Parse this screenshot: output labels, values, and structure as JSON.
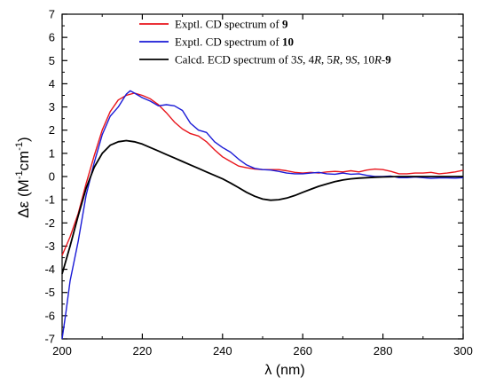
{
  "chart_data": {
    "type": "line",
    "xlabel": "λ (nm)",
    "ylabel_main": "Δε (M",
    "ylabel_exp1": "-1",
    "ylabel_mid": "cm",
    "ylabel_exp2": "-1",
    "ylabel_end": ")",
    "xlim": [
      200,
      300
    ],
    "ylim": [
      -7,
      7
    ],
    "x_ticks": [
      "200",
      "220",
      "240",
      "260",
      "280",
      "300"
    ],
    "y_ticks": [
      "-7",
      "-6",
      "-5",
      "-4",
      "-3",
      "-2",
      "-1",
      "0",
      "1",
      "2",
      "3",
      "4",
      "5",
      "6",
      "7"
    ],
    "grid": false,
    "legend_position": "top-right",
    "legend": [
      {
        "parts": [
          [
            "Exptl. CD spectrum of ",
            "normal"
          ],
          [
            "9",
            "bold"
          ]
        ],
        "color": "#e8141b"
      },
      {
        "parts": [
          [
            "Exptl. CD spectrum of ",
            "normal"
          ],
          [
            "10",
            "bold"
          ]
        ],
        "color": "#1a1ad6"
      },
      {
        "parts": [
          [
            "Calcd. ECD spectrum of 3",
            "normal"
          ],
          [
            "S",
            "italic"
          ],
          [
            ", 4",
            "normal"
          ],
          [
            "R",
            "italic"
          ],
          [
            ", 5",
            "normal"
          ],
          [
            "R",
            "italic"
          ],
          [
            ", 9",
            "normal"
          ],
          [
            "S",
            "italic"
          ],
          [
            ", 10",
            "normal"
          ],
          [
            "R",
            "italic"
          ],
          [
            "-",
            "normal"
          ],
          [
            "9",
            "bold"
          ]
        ],
        "color": "#000000"
      }
    ],
    "series": [
      {
        "color": "#e8141b",
        "points": [
          [
            200,
            -3.4
          ],
          [
            202,
            -2.6
          ],
          [
            204,
            -1.6
          ],
          [
            206,
            -0.3
          ],
          [
            208,
            0.9
          ],
          [
            210,
            2.0
          ],
          [
            212,
            2.8
          ],
          [
            214,
            3.3
          ],
          [
            216,
            3.5
          ],
          [
            218,
            3.6
          ],
          [
            220,
            3.5
          ],
          [
            222,
            3.35
          ],
          [
            224,
            3.1
          ],
          [
            226,
            2.75
          ],
          [
            228,
            2.35
          ],
          [
            230,
            2.05
          ],
          [
            232,
            1.85
          ],
          [
            234,
            1.75
          ],
          [
            236,
            1.5
          ],
          [
            238,
            1.15
          ],
          [
            240,
            0.85
          ],
          [
            242,
            0.65
          ],
          [
            244,
            0.45
          ],
          [
            246,
            0.38
          ],
          [
            248,
            0.32
          ],
          [
            250,
            0.3
          ],
          [
            252,
            0.3
          ],
          [
            254,
            0.3
          ],
          [
            256,
            0.25
          ],
          [
            258,
            0.18
          ],
          [
            260,
            0.15
          ],
          [
            262,
            0.18
          ],
          [
            264,
            0.15
          ],
          [
            266,
            0.2
          ],
          [
            268,
            0.22
          ],
          [
            270,
            0.2
          ],
          [
            272,
            0.25
          ],
          [
            274,
            0.2
          ],
          [
            276,
            0.28
          ],
          [
            278,
            0.32
          ],
          [
            280,
            0.3
          ],
          [
            282,
            0.22
          ],
          [
            284,
            0.12
          ],
          [
            286,
            0.12
          ],
          [
            288,
            0.15
          ],
          [
            290,
            0.15
          ],
          [
            292,
            0.18
          ],
          [
            294,
            0.12
          ],
          [
            296,
            0.15
          ],
          [
            298,
            0.2
          ],
          [
            300,
            0.27
          ]
        ]
      },
      {
        "color": "#1a1ad6",
        "points": [
          [
            200,
            -7.0
          ],
          [
            201,
            -5.8
          ],
          [
            202,
            -4.5
          ],
          [
            204,
            -2.8
          ],
          [
            206,
            -0.8
          ],
          [
            208,
            0.6
          ],
          [
            210,
            1.8
          ],
          [
            212,
            2.6
          ],
          [
            214,
            3.0
          ],
          [
            216,
            3.55
          ],
          [
            217,
            3.7
          ],
          [
            218,
            3.6
          ],
          [
            220,
            3.4
          ],
          [
            222,
            3.25
          ],
          [
            224,
            3.05
          ],
          [
            226,
            3.1
          ],
          [
            228,
            3.05
          ],
          [
            230,
            2.85
          ],
          [
            232,
            2.3
          ],
          [
            234,
            2.0
          ],
          [
            236,
            1.9
          ],
          [
            238,
            1.5
          ],
          [
            240,
            1.25
          ],
          [
            242,
            1.05
          ],
          [
            244,
            0.75
          ],
          [
            246,
            0.5
          ],
          [
            248,
            0.35
          ],
          [
            250,
            0.3
          ],
          [
            252,
            0.28
          ],
          [
            254,
            0.22
          ],
          [
            256,
            0.15
          ],
          [
            258,
            0.12
          ],
          [
            260,
            0.12
          ],
          [
            262,
            0.15
          ],
          [
            264,
            0.18
          ],
          [
            266,
            0.12
          ],
          [
            268,
            0.1
          ],
          [
            270,
            0.15
          ],
          [
            272,
            0.1
          ],
          [
            274,
            0.12
          ],
          [
            276,
            0.05
          ],
          [
            278,
            0.0
          ],
          [
            280,
            0.0
          ],
          [
            282,
            0.02
          ],
          [
            284,
            -0.05
          ],
          [
            286,
            -0.05
          ],
          [
            288,
            -0.02
          ],
          [
            290,
            -0.05
          ],
          [
            292,
            -0.08
          ],
          [
            294,
            -0.06
          ],
          [
            296,
            -0.06
          ],
          [
            298,
            -0.07
          ],
          [
            300,
            -0.05
          ]
        ]
      },
      {
        "color": "#000000",
        "points": [
          [
            200,
            -4.2
          ],
          [
            202,
            -3.0
          ],
          [
            204,
            -1.7
          ],
          [
            206,
            -0.5
          ],
          [
            208,
            0.4
          ],
          [
            210,
            1.0
          ],
          [
            212,
            1.35
          ],
          [
            214,
            1.5
          ],
          [
            216,
            1.55
          ],
          [
            218,
            1.5
          ],
          [
            220,
            1.4
          ],
          [
            222,
            1.25
          ],
          [
            224,
            1.1
          ],
          [
            226,
            0.95
          ],
          [
            228,
            0.8
          ],
          [
            230,
            0.65
          ],
          [
            232,
            0.5
          ],
          [
            234,
            0.35
          ],
          [
            236,
            0.2
          ],
          [
            238,
            0.05
          ],
          [
            240,
            -0.1
          ],
          [
            242,
            -0.28
          ],
          [
            244,
            -0.48
          ],
          [
            246,
            -0.68
          ],
          [
            248,
            -0.85
          ],
          [
            250,
            -0.97
          ],
          [
            252,
            -1.02
          ],
          [
            254,
            -1.0
          ],
          [
            256,
            -0.93
          ],
          [
            258,
            -0.82
          ],
          [
            260,
            -0.68
          ],
          [
            262,
            -0.55
          ],
          [
            264,
            -0.42
          ],
          [
            266,
            -0.32
          ],
          [
            268,
            -0.22
          ],
          [
            270,
            -0.15
          ],
          [
            272,
            -0.1
          ],
          [
            274,
            -0.07
          ],
          [
            276,
            -0.05
          ],
          [
            278,
            -0.03
          ],
          [
            280,
            -0.02
          ],
          [
            284,
            0.0
          ],
          [
            288,
            0.0
          ],
          [
            292,
            0.0
          ],
          [
            296,
            0.0
          ],
          [
            300,
            0.0
          ]
        ]
      }
    ]
  }
}
